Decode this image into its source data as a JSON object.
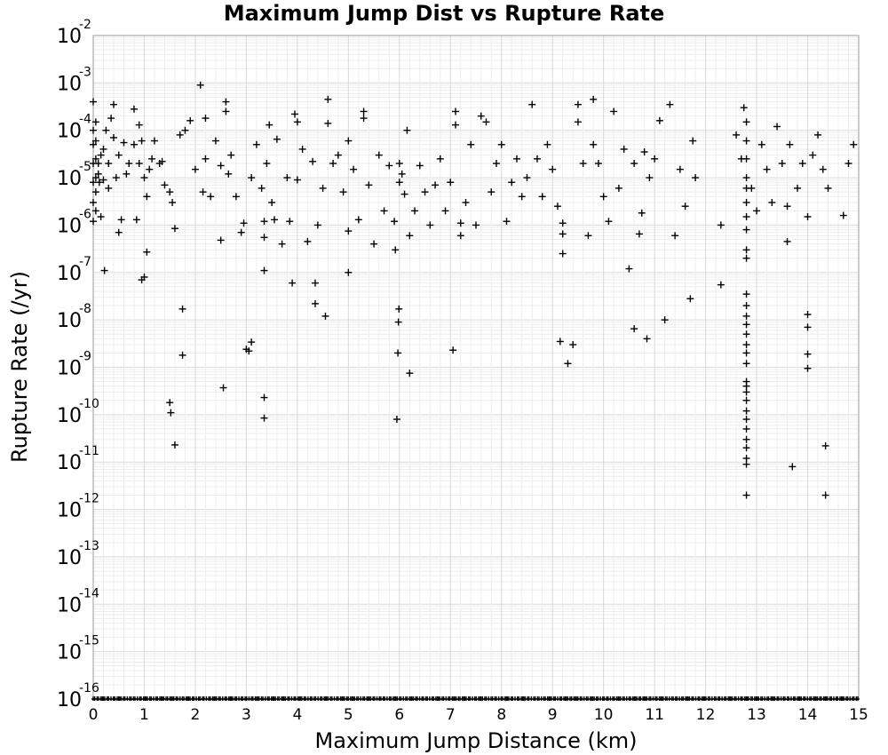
{
  "chart_data": {
    "type": "scatter",
    "title": "Maximum Jump Dist vs Rupture Rate",
    "xlabel": "Maximum Jump Distance (km)",
    "ylabel": "Rupture Rate (/yr)",
    "xlim": [
      0,
      15
    ],
    "ylim_log10": [
      -16,
      -2
    ],
    "y_scale": "log",
    "grid": true,
    "marker": "+",
    "x_ticks": [
      "0",
      "1",
      "2",
      "3",
      "4",
      "5",
      "6",
      "7",
      "8",
      "9",
      "10",
      "11",
      "12",
      "13",
      "14",
      "15"
    ],
    "y_ticks": [
      {
        "base": "10",
        "exp": "-2"
      },
      {
        "base": "10",
        "exp": "-3"
      },
      {
        "base": "10",
        "exp": "-4"
      },
      {
        "base": "10",
        "exp": "-5"
      },
      {
        "base": "10",
        "exp": "-6"
      },
      {
        "base": "10",
        "exp": "-7"
      },
      {
        "base": "10",
        "exp": "-8"
      },
      {
        "base": "10",
        "exp": "-9"
      },
      {
        "base": "10",
        "exp": "-10"
      },
      {
        "base": "10",
        "exp": "-11"
      },
      {
        "base": "10",
        "exp": "-12"
      },
      {
        "base": "10",
        "exp": "-13"
      },
      {
        "base": "10",
        "exp": "-14"
      },
      {
        "base": "10",
        "exp": "-15"
      },
      {
        "base": "10",
        "exp": "-16"
      }
    ],
    "points": [
      [
        0.0,
        0.0001
      ],
      [
        0.0,
        5e-05
      ],
      [
        0.0,
        2e-05
      ],
      [
        0.0,
        8e-06
      ],
      [
        0.0,
        3e-06
      ],
      [
        0.0,
        1.2e-06
      ],
      [
        0.0,
        0.0004
      ],
      [
        0.05,
        0.00015
      ],
      [
        0.05,
        6e-05
      ],
      [
        0.05,
        2.5e-05
      ],
      [
        0.05,
        1e-05
      ],
      [
        0.05,
        5e-06
      ],
      [
        0.05,
        2e-06
      ],
      [
        0.1,
        1.2e-05
      ],
      [
        0.1,
        2e-05
      ],
      [
        0.12,
        8e-06
      ],
      [
        0.15,
        3e-05
      ],
      [
        0.15,
        1.5e-06
      ],
      [
        0.2,
        9e-06
      ],
      [
        0.2,
        4e-05
      ],
      [
        0.22,
        1.1e-07
      ],
      [
        0.25,
        0.0001
      ],
      [
        0.3,
        6e-06
      ],
      [
        0.3,
        2e-05
      ],
      [
        0.35,
        0.00018
      ],
      [
        0.4,
        0.00035
      ],
      [
        0.4,
        7e-05
      ],
      [
        0.45,
        1e-05
      ],
      [
        0.5,
        3e-05
      ],
      [
        0.5,
        7e-07
      ],
      [
        0.55,
        1.3e-06
      ],
      [
        0.6,
        5.5e-05
      ],
      [
        0.65,
        1.2e-05
      ],
      [
        0.7,
        2e-05
      ],
      [
        0.8,
        0.00028
      ],
      [
        0.8,
        5e-05
      ],
      [
        0.85,
        1.3e-06
      ],
      [
        0.9,
        2e-05
      ],
      [
        0.9,
        0.00013
      ],
      [
        0.95,
        7e-08
      ],
      [
        0.95,
        6e-05
      ],
      [
        1.0,
        8e-08
      ],
      [
        1.0,
        1e-05
      ],
      [
        1.05,
        2.7e-07
      ],
      [
        1.05,
        4e-06
      ],
      [
        1.1,
        1.5e-05
      ],
      [
        1.15,
        2.5e-05
      ],
      [
        1.2,
        6e-05
      ],
      [
        1.3,
        2e-05
      ],
      [
        1.35,
        2.2e-05
      ],
      [
        1.4,
        7e-06
      ],
      [
        1.5,
        5e-06
      ],
      [
        1.5,
        1.8e-10
      ],
      [
        1.52,
        1.1e-10
      ],
      [
        1.55,
        3e-06
      ],
      [
        1.6,
        2.3e-11
      ],
      [
        1.6,
        8.5e-07
      ],
      [
        1.7,
        8e-05
      ],
      [
        1.75,
        1.7e-08
      ],
      [
        1.75,
        1.8e-09
      ],
      [
        1.8,
        0.0001
      ],
      [
        1.9,
        0.00016
      ],
      [
        2.0,
        1.5e-05
      ],
      [
        2.1,
        0.0009
      ],
      [
        2.15,
        5e-06
      ],
      [
        2.2,
        2.5e-05
      ],
      [
        2.2,
        0.00018
      ],
      [
        2.3,
        4e-06
      ],
      [
        2.4,
        6e-05
      ],
      [
        2.5,
        4.8e-07
      ],
      [
        2.5,
        1.8e-05
      ],
      [
        2.55,
        3.7e-10
      ],
      [
        2.6,
        0.0004
      ],
      [
        2.6,
        0.00025
      ],
      [
        2.65,
        1.2e-05
      ],
      [
        2.7,
        3e-05
      ],
      [
        2.8,
        4e-06
      ],
      [
        2.9,
        7e-07
      ],
      [
        2.95,
        1.1e-06
      ],
      [
        3.0,
        2.4e-09
      ],
      [
        3.05,
        2.2e-09
      ],
      [
        3.1,
        3.4e-09
      ],
      [
        3.1,
        1e-05
      ],
      [
        3.2,
        5e-05
      ],
      [
        3.3,
        6e-06
      ],
      [
        3.35,
        1.1e-07
      ],
      [
        3.35,
        5.5e-07
      ],
      [
        3.35,
        1.2e-06
      ],
      [
        3.35,
        2.3e-10
      ],
      [
        3.35,
        8.5e-11
      ],
      [
        3.4,
        2e-05
      ],
      [
        3.45,
        0.00013
      ],
      [
        3.5,
        3e-06
      ],
      [
        3.55,
        1.3e-06
      ],
      [
        3.6,
        6.5e-05
      ],
      [
        3.7,
        4e-07
      ],
      [
        3.8,
        1e-05
      ],
      [
        3.85,
        1.2e-06
      ],
      [
        3.9,
        6e-08
      ],
      [
        3.95,
        0.00022
      ],
      [
        4.0,
        0.00015
      ],
      [
        4.0,
        9e-06
      ],
      [
        4.1,
        4e-05
      ],
      [
        4.2,
        4.5e-07
      ],
      [
        4.3,
        2.2e-05
      ],
      [
        4.35,
        6e-08
      ],
      [
        4.35,
        2.2e-08
      ],
      [
        4.4,
        1e-06
      ],
      [
        4.5,
        6e-06
      ],
      [
        4.55,
        1.2e-08
      ],
      [
        4.6,
        0.00045
      ],
      [
        4.6,
        0.00014
      ],
      [
        4.7,
        2e-05
      ],
      [
        4.8,
        3e-05
      ],
      [
        4.9,
        5e-06
      ],
      [
        5.0,
        1e-07
      ],
      [
        5.0,
        7.5e-07
      ],
      [
        5.0,
        6e-05
      ],
      [
        5.1,
        1.5e-05
      ],
      [
        5.2,
        1.3e-06
      ],
      [
        5.3,
        0.00025
      ],
      [
        5.3,
        0.00018
      ],
      [
        5.4,
        7e-06
      ],
      [
        5.5,
        4e-07
      ],
      [
        5.6,
        3e-05
      ],
      [
        5.7,
        2e-06
      ],
      [
        5.8,
        1.8e-05
      ],
      [
        5.9,
        1.2e-06
      ],
      [
        5.92,
        3e-07
      ],
      [
        5.95,
        8e-11
      ],
      [
        5.97,
        2e-09
      ],
      [
        5.98,
        9e-09
      ],
      [
        5.99,
        1.7e-08
      ],
      [
        6.0,
        8e-06
      ],
      [
        6.0,
        2e-05
      ],
      [
        6.05,
        1.2e-05
      ],
      [
        6.1,
        4.5e-06
      ],
      [
        6.15,
        0.0001
      ],
      [
        6.2,
        7.5e-10
      ],
      [
        6.2,
        6e-07
      ],
      [
        6.3,
        2e-06
      ],
      [
        6.4,
        1.8e-05
      ],
      [
        6.5,
        5e-06
      ],
      [
        6.6,
        1e-06
      ],
      [
        6.7,
        7e-06
      ],
      [
        6.8,
        2.5e-05
      ],
      [
        6.9,
        2e-06
      ],
      [
        7.0,
        8e-06
      ],
      [
        7.05,
        2.3e-09
      ],
      [
        7.1,
        0.00025
      ],
      [
        7.1,
        0.00013
      ],
      [
        7.2,
        6e-07
      ],
      [
        7.2,
        1.1e-06
      ],
      [
        7.3,
        3e-06
      ],
      [
        7.4,
        5e-05
      ],
      [
        7.5,
        1e-06
      ],
      [
        7.6,
        0.0002
      ],
      [
        7.7,
        0.00015
      ],
      [
        7.8,
        5e-06
      ],
      [
        7.9,
        2e-05
      ],
      [
        8.0,
        5e-05
      ],
      [
        8.1,
        1.2e-06
      ],
      [
        8.2,
        8e-06
      ],
      [
        8.3,
        2.5e-05
      ],
      [
        8.4,
        4e-06
      ],
      [
        8.5,
        1e-05
      ],
      [
        8.6,
        0.00035
      ],
      [
        8.7,
        2.5e-05
      ],
      [
        8.8,
        4e-06
      ],
      [
        8.9,
        5e-05
      ],
      [
        9.0,
        1.5e-05
      ],
      [
        9.1,
        2.5e-06
      ],
      [
        9.15,
        3.5e-09
      ],
      [
        9.2,
        2.5e-07
      ],
      [
        9.2,
        6.5e-07
      ],
      [
        9.2,
        1.1e-06
      ],
      [
        9.3,
        1.2e-09
      ],
      [
        9.4,
        3e-09
      ],
      [
        9.5,
        0.00035
      ],
      [
        9.5,
        0.00015
      ],
      [
        9.6,
        2e-05
      ],
      [
        9.7,
        6e-07
      ],
      [
        9.8,
        0.00045
      ],
      [
        9.8,
        5e-05
      ],
      [
        9.9,
        2e-05
      ],
      [
        10.0,
        4e-06
      ],
      [
        10.1,
        1.2e-06
      ],
      [
        10.2,
        0.00025
      ],
      [
        10.3,
        6e-06
      ],
      [
        10.4,
        4e-05
      ],
      [
        10.5,
        1.2e-07
      ],
      [
        10.6,
        6.5e-09
      ],
      [
        10.6,
        2e-05
      ],
      [
        10.7,
        6.5e-07
      ],
      [
        10.75,
        1.8e-06
      ],
      [
        10.8,
        3.5e-05
      ],
      [
        10.85,
        4e-09
      ],
      [
        10.9,
        1e-05
      ],
      [
        11.0,
        2.5e-05
      ],
      [
        11.1,
        0.00016
      ],
      [
        11.2,
        1e-08
      ],
      [
        11.3,
        0.00035
      ],
      [
        11.4,
        6e-07
      ],
      [
        11.5,
        1.5e-05
      ],
      [
        11.6,
        2.5e-06
      ],
      [
        11.7,
        2.8e-08
      ],
      [
        11.75,
        6e-05
      ],
      [
        11.8,
        1e-05
      ],
      [
        12.3,
        5.5e-08
      ],
      [
        12.3,
        1e-06
      ],
      [
        12.6,
        8e-05
      ],
      [
        12.7,
        2.5e-05
      ],
      [
        12.75,
        0.0003
      ],
      [
        12.8,
        0.00015
      ],
      [
        12.8,
        6e-05
      ],
      [
        12.8,
        2.5e-05
      ],
      [
        12.8,
        1e-05
      ],
      [
        12.8,
        6e-06
      ],
      [
        12.8,
        3e-06
      ],
      [
        12.8,
        1.5e-06
      ],
      [
        12.8,
        8e-07
      ],
      [
        12.8,
        3e-07
      ],
      [
        12.8,
        2e-07
      ],
      [
        12.8,
        3.5e-08
      ],
      [
        12.8,
        2e-08
      ],
      [
        12.8,
        1.2e-08
      ],
      [
        12.8,
        8e-09
      ],
      [
        12.8,
        5e-09
      ],
      [
        12.8,
        3e-09
      ],
      [
        12.8,
        2e-09
      ],
      [
        12.8,
        1.2e-09
      ],
      [
        12.8,
        5e-10
      ],
      [
        12.8,
        4e-10
      ],
      [
        12.8,
        3e-10
      ],
      [
        12.8,
        2e-10
      ],
      [
        12.8,
        1.2e-10
      ],
      [
        12.8,
        8e-11
      ],
      [
        12.8,
        5e-11
      ],
      [
        12.8,
        3e-11
      ],
      [
        12.8,
        2e-11
      ],
      [
        12.8,
        1.2e-11
      ],
      [
        12.8,
        9e-12
      ],
      [
        12.8,
        2e-12
      ],
      [
        12.9,
        6e-06
      ],
      [
        13.0,
        2e-06
      ],
      [
        13.1,
        5e-05
      ],
      [
        13.2,
        1.5e-05
      ],
      [
        13.3,
        3e-06
      ],
      [
        13.4,
        0.00012
      ],
      [
        13.5,
        2e-05
      ],
      [
        13.6,
        4.5e-07
      ],
      [
        13.6,
        2.5e-06
      ],
      [
        13.65,
        5e-05
      ],
      [
        13.7,
        8e-12
      ],
      [
        13.8,
        6e-06
      ],
      [
        13.9,
        2e-05
      ],
      [
        14.0,
        1.5e-06
      ],
      [
        14.0,
        1.3e-08
      ],
      [
        14.0,
        7e-09
      ],
      [
        14.0,
        1.9e-09
      ],
      [
        14.0,
        9.5e-10
      ],
      [
        14.1,
        3e-05
      ],
      [
        14.2,
        8e-05
      ],
      [
        14.3,
        1.5e-05
      ],
      [
        14.35,
        2.2e-11
      ],
      [
        14.35,
        2e-12
      ],
      [
        14.4,
        6e-06
      ],
      [
        14.7,
        1.6e-06
      ],
      [
        14.8,
        2e-05
      ],
      [
        14.9,
        5e-05
      ]
    ],
    "floor_points_count": 420
  }
}
